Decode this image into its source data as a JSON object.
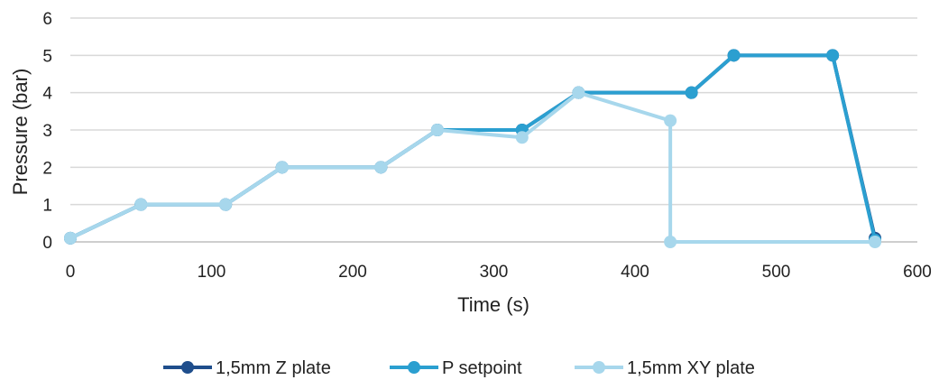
{
  "chart_data": {
    "type": "line",
    "title": "",
    "xlabel": "Time (s)",
    "ylabel": "Pressure (bar)",
    "xlim": [
      0,
      600
    ],
    "ylim": [
      0,
      6
    ],
    "xticks": [
      "0",
      "100",
      "200",
      "300",
      "400",
      "500",
      "600"
    ],
    "yticks": [
      "0",
      "1",
      "2",
      "3",
      "4",
      "5",
      "6"
    ],
    "grid": "horizontal",
    "legend_position": "bottom",
    "series": [
      {
        "name": "1,5mm Z plate",
        "color": "#1f4e8c",
        "points": [
          [
            0,
            0.1
          ],
          [
            50,
            1
          ],
          [
            110,
            1
          ],
          [
            150,
            2
          ],
          [
            220,
            2
          ],
          [
            260,
            3
          ],
          [
            320,
            3
          ],
          [
            360,
            4
          ],
          [
            440,
            4
          ],
          [
            470,
            5
          ],
          [
            540,
            5
          ],
          [
            570,
            0.1
          ]
        ]
      },
      {
        "name": "P setpoint",
        "color": "#2b9fd0",
        "points": [
          [
            0,
            0.1
          ],
          [
            50,
            1
          ],
          [
            110,
            1
          ],
          [
            150,
            2
          ],
          [
            220,
            2
          ],
          [
            260,
            3
          ],
          [
            320,
            3
          ],
          [
            360,
            4
          ],
          [
            440,
            4
          ],
          [
            470,
            5
          ],
          [
            540,
            5
          ],
          [
            570,
            0.05
          ]
        ]
      },
      {
        "name": "1,5mm XY plate",
        "color": "#a7d7ec",
        "points": [
          [
            0,
            0.1
          ],
          [
            50,
            1
          ],
          [
            110,
            1
          ],
          [
            150,
            2
          ],
          [
            220,
            2
          ],
          [
            260,
            3
          ],
          [
            320,
            2.8
          ],
          [
            360,
            4
          ],
          [
            425,
            3.25
          ],
          [
            425,
            0
          ],
          [
            570,
            0
          ]
        ]
      }
    ]
  }
}
